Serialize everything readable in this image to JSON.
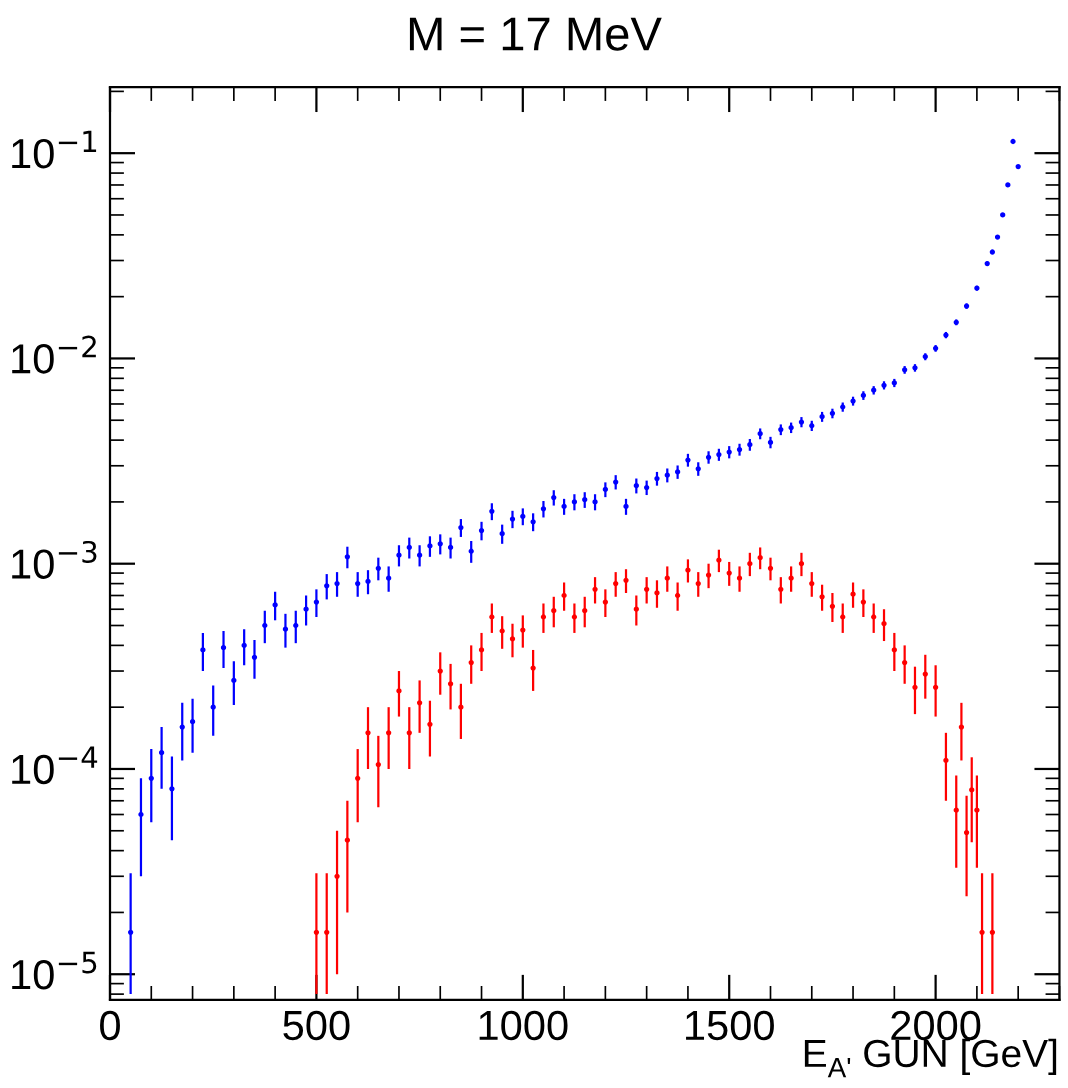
{
  "chart_data": {
    "type": "scatter",
    "title": "M = 17 MeV",
    "xlabel": "E$_{A'}$ GUN [GeV]",
    "log": "y",
    "grid": false,
    "marker": "circle",
    "xlim": [
      0,
      2300
    ],
    "xticks": [
      0,
      500,
      1000,
      1500,
      2000
    ],
    "ylim": [
      7.5e-06,
      0.21
    ],
    "yticks": [
      {
        "value": 1e-05,
        "label": "10$^{−5}$"
      },
      {
        "value": 0.0001,
        "label": "10$^{−4}$"
      },
      {
        "value": 0.001,
        "label": "10$^{−3}$"
      },
      {
        "value": 0.01,
        "label": "10$^{−2}$"
      },
      {
        "value": 0.1,
        "label": "10$^{−1}$"
      }
    ],
    "series": [
      {
        "color": "#0000ff",
        "x": [
          50,
          75,
          100,
          125,
          150,
          175,
          200,
          225,
          250,
          275,
          300,
          325,
          350,
          375,
          400,
          425,
          450,
          475,
          500,
          525,
          550,
          575,
          600,
          625,
          650,
          675,
          700,
          725,
          750,
          775,
          800,
          825,
          850,
          875,
          900,
          925,
          950,
          975,
          1000,
          1025,
          1050,
          1075,
          1100,
          1125,
          1150,
          1175,
          1200,
          1225,
          1250,
          1275,
          1300,
          1325,
          1350,
          1375,
          1400,
          1425,
          1450,
          1475,
          1500,
          1525,
          1550,
          1575,
          1600,
          1625,
          1650,
          1675,
          1700,
          1725,
          1750,
          1775,
          1800,
          1825,
          1850,
          1875,
          1900,
          1925,
          1950,
          1975,
          2000,
          2025,
          2050,
          2075,
          2100,
          2125,
          2137.5,
          2150,
          2162.5,
          2175,
          2187.5,
          2200
        ],
        "values": [
          1.6e-05,
          6e-05,
          9e-05,
          0.00012,
          8e-05,
          0.00016,
          0.00017,
          0.00038,
          0.0002,
          0.00039,
          0.00027,
          0.0004,
          0.00035,
          0.0005,
          0.00063,
          0.00048,
          0.0005,
          0.0006,
          0.00065,
          0.00078,
          0.0008,
          0.00108,
          0.0008,
          0.00082,
          0.00095,
          0.00085,
          0.0011,
          0.0012,
          0.0011,
          0.00122,
          0.00125,
          0.0012,
          0.0015,
          0.00115,
          0.00145,
          0.0018,
          0.0014,
          0.00165,
          0.0017,
          0.0016,
          0.00185,
          0.0021,
          0.0019,
          0.002,
          0.00205,
          0.002,
          0.0023,
          0.0025,
          0.0019,
          0.0024,
          0.00235,
          0.0026,
          0.0027,
          0.0028,
          0.0032,
          0.0029,
          0.0033,
          0.0034,
          0.0035,
          0.0036,
          0.0038,
          0.0043,
          0.0039,
          0.0045,
          0.0046,
          0.0049,
          0.0047,
          0.0052,
          0.0054,
          0.0058,
          0.0062,
          0.0066,
          0.007,
          0.0074,
          0.0076,
          0.0088,
          0.009,
          0.0102,
          0.0112,
          0.013,
          0.015,
          0.018,
          0.022,
          0.029,
          0.033,
          0.039,
          0.05,
          0.07,
          0.114,
          0.086
        ],
        "errors": [
          [
            8e-06,
            3.1e-05
          ],
          3e-05,
          3.5e-05,
          4e-05,
          3.5e-05,
          5e-05,
          5e-05,
          8e-05,
          5.5e-05,
          8e-05,
          6.5e-05,
          8e-05,
          7.5e-05,
          9e-05,
          0.0001,
          9e-05,
          9e-05,
          0.0001,
          0.0001,
          0.00011,
          0.00011,
          0.00013,
          0.00011,
          0.00011,
          0.00012,
          0.00012,
          0.00013,
          0.00014,
          0.00013,
          0.00014,
          0.00014,
          0.00014,
          0.00015,
          0.00014,
          0.00015,
          0.00017,
          0.00015,
          0.00016,
          0.00016,
          0.00016,
          0.00017,
          0.00018,
          0.00017,
          0.00018,
          0.00018,
          0.00018,
          0.00019,
          0.0002,
          0.00017,
          0.0002,
          0.00019,
          0.0002,
          0.00021,
          0.00021,
          0.00023,
          0.00022,
          0.00023,
          0.00023,
          0.00024,
          0.00024,
          0.00025,
          0.00026,
          0.00025,
          0.00027,
          0.00027,
          0.00028,
          0.00027,
          0.00029,
          0.00029,
          0.0003,
          0.00031,
          0.00032,
          0.00033,
          0.00034,
          0.00035,
          0.00038,
          0.00038,
          0.0004,
          0.00042,
          0.00046,
          0.00049,
          0.00054,
          0.00059,
          0.00068,
          0.00073,
          0.00079,
          0.0009,
          0.0011,
          0.0013,
          0.0012
        ]
      },
      {
        "color": "#ff0000",
        "x": [
          500,
          525,
          550,
          575,
          600,
          625,
          650,
          675,
          700,
          725,
          750,
          775,
          800,
          825,
          850,
          875,
          900,
          925,
          950,
          975,
          1000,
          1025,
          1050,
          1075,
          1100,
          1125,
          1150,
          1175,
          1200,
          1225,
          1250,
          1275,
          1300,
          1325,
          1350,
          1375,
          1400,
          1425,
          1450,
          1475,
          1500,
          1525,
          1550,
          1575,
          1600,
          1625,
          1650,
          1675,
          1700,
          1725,
          1750,
          1775,
          1800,
          1825,
          1850,
          1875,
          1900,
          1925,
          1950,
          1975,
          2000,
          2025,
          2050,
          2062.5,
          2075,
          2087.5,
          2100,
          2112.5,
          2137.5
        ],
        "values": [
          1.6e-05,
          1.6e-05,
          3e-05,
          4.5e-05,
          9e-05,
          0.00015,
          0.000105,
          0.00015,
          0.00024,
          0.00015,
          0.00021,
          0.000165,
          0.0003,
          0.00026,
          0.0002,
          0.00033,
          0.00038,
          0.00055,
          0.00047,
          0.00043,
          0.000475,
          0.00031,
          0.00055,
          0.00059,
          0.0007,
          0.00055,
          0.00059,
          0.00075,
          0.00065,
          0.0008,
          0.00083,
          0.0006,
          0.00075,
          0.00072,
          0.00085,
          0.0007,
          0.00093,
          0.0008,
          0.00088,
          0.00104,
          0.0009,
          0.00085,
          0.001,
          0.00107,
          0.00095,
          0.00075,
          0.00085,
          0.001,
          0.0008,
          0.00069,
          0.00062,
          0.00055,
          0.00071,
          0.00065,
          0.00055,
          0.00051,
          0.00038,
          0.00033,
          0.00025,
          0.00029,
          0.00025,
          0.00011,
          6.3e-05,
          0.00016,
          4.9e-05,
          7.9e-05,
          6.3e-05,
          1.6e-05,
          1.6e-05
        ],
        "errors": [
          [
            8e-06,
            3.1e-05
          ],
          [
            8e-06,
            3.1e-05
          ],
          2e-05,
          2.5e-05,
          3.5e-05,
          5e-05,
          4e-05,
          5e-05,
          6e-05,
          5e-05,
          6e-05,
          5e-05,
          7e-05,
          6.5e-05,
          6e-05,
          7e-05,
          8e-05,
          9e-05,
          8.5e-05,
          8e-05,
          8.5e-05,
          7e-05,
          9e-05,
          0.0001,
          0.00011,
          9e-05,
          0.0001,
          0.00011,
          0.0001,
          0.00011,
          0.00011,
          0.0001,
          0.00011,
          0.00011,
          0.00012,
          0.00011,
          0.00012,
          0.00011,
          0.00012,
          0.00013,
          0.00012,
          0.00012,
          0.00013,
          0.00013,
          0.00012,
          0.00011,
          0.00012,
          0.00013,
          0.00011,
          0.0001,
          0.0001,
          9e-05,
          0.0001,
          0.0001,
          9e-05,
          9e-05,
          8e-05,
          7e-05,
          6.5e-05,
          7e-05,
          7e-05,
          4e-05,
          3e-05,
          5e-05,
          2.5e-05,
          3.5e-05,
          3e-05,
          [
            8e-06,
            3.1e-05
          ],
          [
            8e-06,
            3.1e-05
          ]
        ]
      }
    ]
  }
}
